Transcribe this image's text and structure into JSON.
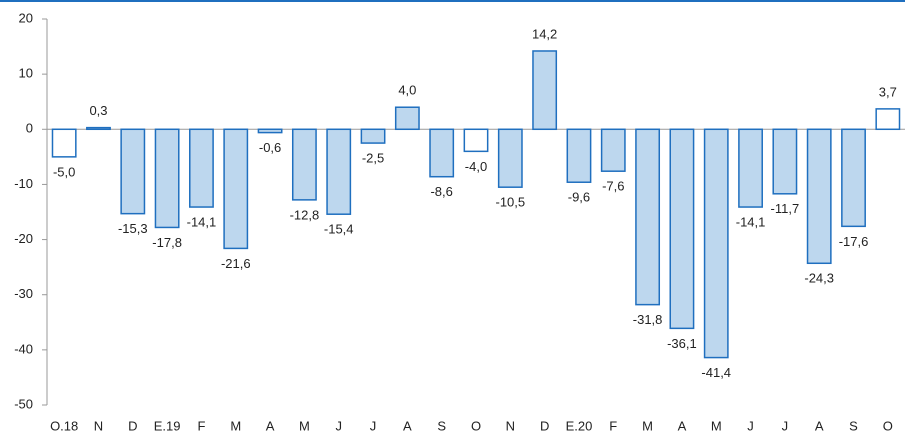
{
  "chart_data": {
    "type": "bar",
    "categories": [
      "O.18",
      "N",
      "D",
      "E.19",
      "F",
      "M",
      "A",
      "M",
      "J",
      "J",
      "A",
      "S",
      "O",
      "N",
      "D",
      "E.20",
      "F",
      "M",
      "A",
      "M",
      "J",
      "J",
      "A",
      "S",
      "O"
    ],
    "values": [
      -5.0,
      0.3,
      -15.3,
      -17.8,
      -14.1,
      -21.6,
      -0.6,
      -12.8,
      -15.4,
      -2.5,
      4.0,
      -8.6,
      -4.0,
      -10.5,
      14.2,
      -9.6,
      -7.6,
      -31.8,
      -36.1,
      -41.4,
      -14.1,
      -11.7,
      -24.3,
      -17.6,
      3.7
    ],
    "value_labels": [
      "-5,0",
      "0,3",
      "-15,3",
      "-17,8",
      "-14,1",
      "-21,6",
      "-0,6",
      "-12,8",
      "-15,4",
      "-2,5",
      "4,0",
      "-8,6",
      "-4,0",
      "-10,5",
      "14,2",
      "-9,6",
      "-7,6",
      "-31,8",
      "-36,1",
      "-41,4",
      "-14,1",
      "-11,7",
      "-24,3",
      "-17,6",
      "3,7"
    ],
    "colors": [
      "#ffffff",
      "#bdd7ee",
      "#bdd7ee",
      "#bdd7ee",
      "#bdd7ee",
      "#bdd7ee",
      "#bdd7ee",
      "#bdd7ee",
      "#bdd7ee",
      "#bdd7ee",
      "#bdd7ee",
      "#bdd7ee",
      "#ffffff",
      "#bdd7ee",
      "#bdd7ee",
      "#bdd7ee",
      "#bdd7ee",
      "#bdd7ee",
      "#bdd7ee",
      "#bdd7ee",
      "#bdd7ee",
      "#bdd7ee",
      "#bdd7ee",
      "#bdd7ee",
      "#ffffff"
    ],
    "edge_color": "#1f6fbf",
    "ylim": [
      -50,
      20
    ],
    "yticks": [
      20,
      10,
      0,
      -10,
      -20,
      -30,
      -40,
      -50
    ]
  }
}
